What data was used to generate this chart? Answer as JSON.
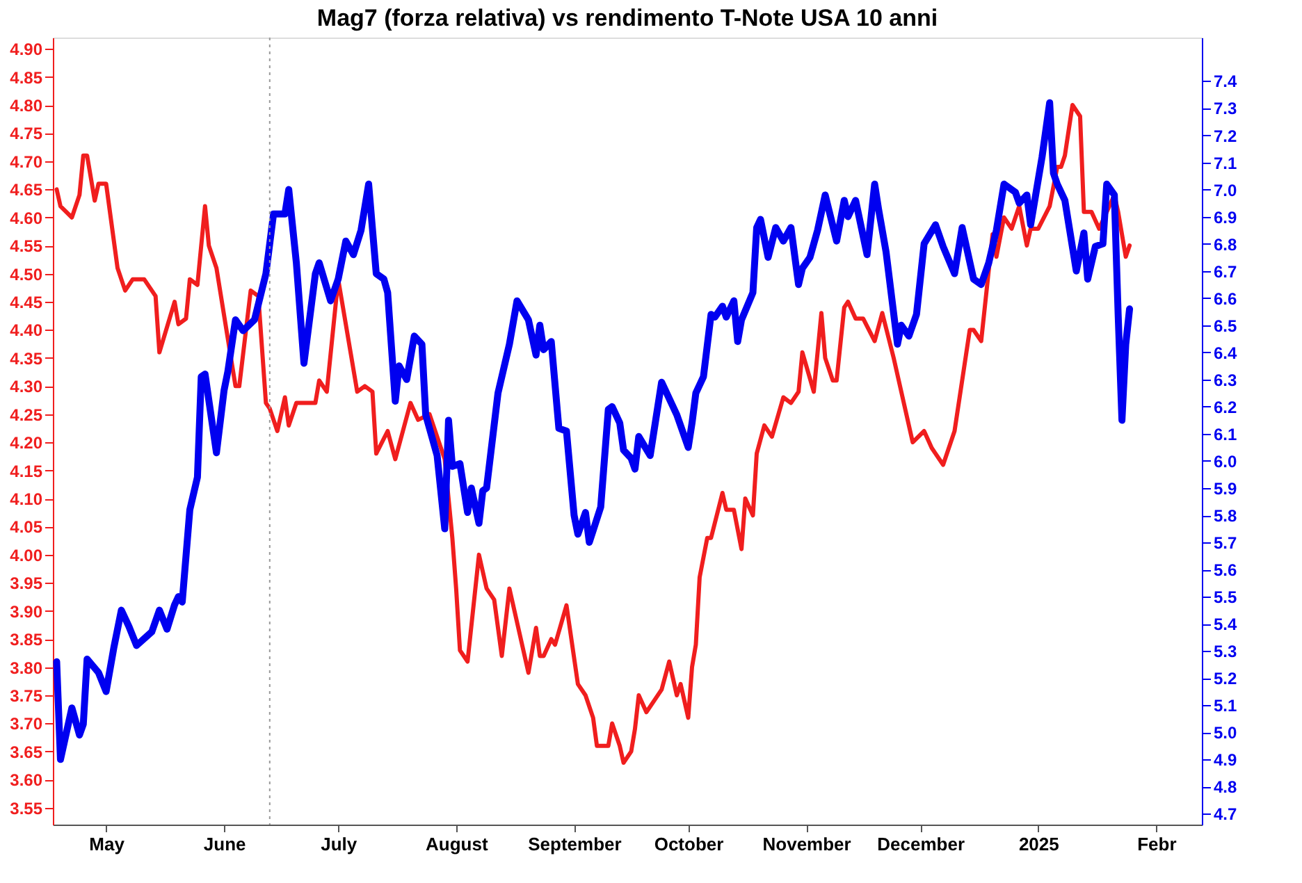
{
  "chart_data": {
    "type": "line",
    "title": "Mag7 (forza relativa) vs rendimento T-Note USA 10 anni",
    "xlim": [
      "2024-04-17",
      "2025-02-13"
    ],
    "xticks": [
      {
        "value": "2024-05-01",
        "label": "May"
      },
      {
        "value": "2024-06-01",
        "label": "June"
      },
      {
        "value": "2024-07-01",
        "label": "July"
      },
      {
        "value": "2024-08-01",
        "label": "August"
      },
      {
        "value": "2024-09-01",
        "label": "September"
      },
      {
        "value": "2024-10-01",
        "label": "October"
      },
      {
        "value": "2024-11-01",
        "label": "November"
      },
      {
        "value": "2024-12-01",
        "label": "December"
      },
      {
        "value": "2025-01-01",
        "label": "2025"
      },
      {
        "value": "2025-02-01",
        "label": "Febr"
      }
    ],
    "ylim": [
      3.52,
      4.92
    ],
    "yticks": [
      {
        "value": 3.55,
        "label": "3.55"
      },
      {
        "value": 3.6,
        "label": "3.60"
      },
      {
        "value": 3.65,
        "label": "3.65"
      },
      {
        "value": 3.7,
        "label": "3.70"
      },
      {
        "value": 3.75,
        "label": "3.75"
      },
      {
        "value": 3.8,
        "label": "3.80"
      },
      {
        "value": 3.85,
        "label": "3.85"
      },
      {
        "value": 3.9,
        "label": "3.90"
      },
      {
        "value": 3.95,
        "label": "3.95"
      },
      {
        "value": 4.0,
        "label": "4.00"
      },
      {
        "value": 4.05,
        "label": "4.05"
      },
      {
        "value": 4.1,
        "label": "4.10"
      },
      {
        "value": 4.15,
        "label": "4.15"
      },
      {
        "value": 4.2,
        "label": "4.20"
      },
      {
        "value": 4.25,
        "label": "4.25"
      },
      {
        "value": 4.3,
        "label": "4.30"
      },
      {
        "value": 4.35,
        "label": "4.35"
      },
      {
        "value": 4.4,
        "label": "4.40"
      },
      {
        "value": 4.45,
        "label": "4.45"
      },
      {
        "value": 4.5,
        "label": "4.50"
      },
      {
        "value": 4.55,
        "label": "4.55"
      },
      {
        "value": 4.6,
        "label": "4.60"
      },
      {
        "value": 4.65,
        "label": "4.65"
      },
      {
        "value": 4.7,
        "label": "4.70"
      },
      {
        "value": 4.75,
        "label": "4.75"
      },
      {
        "value": 4.8,
        "label": "4.80"
      },
      {
        "value": 4.85,
        "label": "4.85"
      },
      {
        "value": 4.9,
        "label": "4.90"
      }
    ],
    "y2lim": [
      4.66,
      7.56
    ],
    "y2ticks": [
      {
        "value": 4.7,
        "label": "4.7"
      },
      {
        "value": 4.8,
        "label": "4.8"
      },
      {
        "value": 4.9,
        "label": "4.9"
      },
      {
        "value": 5.0,
        "label": "5.0"
      },
      {
        "value": 5.1,
        "label": "5.1"
      },
      {
        "value": 5.2,
        "label": "5.2"
      },
      {
        "value": 5.3,
        "label": "5.3"
      },
      {
        "value": 5.4,
        "label": "5.4"
      },
      {
        "value": 5.5,
        "label": "5.5"
      },
      {
        "value": 5.6,
        "label": "5.6"
      },
      {
        "value": 5.7,
        "label": "5.7"
      },
      {
        "value": 5.8,
        "label": "5.8"
      },
      {
        "value": 5.9,
        "label": "5.9"
      },
      {
        "value": 6.0,
        "label": "6.0"
      },
      {
        "value": 6.1,
        "label": "6.1"
      },
      {
        "value": 6.2,
        "label": "6.2"
      },
      {
        "value": 6.3,
        "label": "6.3"
      },
      {
        "value": 6.4,
        "label": "6.4"
      },
      {
        "value": 6.5,
        "label": "6.5"
      },
      {
        "value": 6.6,
        "label": "6.6"
      },
      {
        "value": 6.7,
        "label": "6.7"
      },
      {
        "value": 6.8,
        "label": "6.8"
      },
      {
        "value": 6.9,
        "label": "6.9"
      },
      {
        "value": 7.0,
        "label": "7.0"
      },
      {
        "value": 7.1,
        "label": "7.1"
      },
      {
        "value": 7.2,
        "label": "7.2"
      },
      {
        "value": 7.3,
        "label": "7.3"
      },
      {
        "value": 7.4,
        "label": "7.4"
      }
    ],
    "grid": false,
    "marker": "none",
    "line_style": "solid",
    "ref_lines": [
      {
        "axis": "x",
        "value": "2024-06-13",
        "color": "#999999",
        "line_style": "dotted"
      }
    ],
    "series": [
      {
        "color": "#f01e1e",
        "x": [
          "2024-04-18",
          "2024-04-19",
          "2024-04-22",
          "2024-04-24",
          "2024-04-25",
          "2024-04-26",
          "2024-04-28",
          "2024-04-29",
          "2024-05-01",
          "2024-05-04",
          "2024-05-06",
          "2024-05-08",
          "2024-05-11",
          "2024-05-14",
          "2024-05-15",
          "2024-05-19",
          "2024-05-20",
          "2024-05-22",
          "2024-05-23",
          "2024-05-25",
          "2024-05-27",
          "2024-05-28",
          "2024-05-30",
          "2024-06-04",
          "2024-06-05",
          "2024-06-08",
          "2024-06-10",
          "2024-06-12",
          "2024-06-13",
          "2024-06-15",
          "2024-06-17",
          "2024-06-18",
          "2024-06-20",
          "2024-06-25",
          "2024-06-26",
          "2024-06-28",
          "2024-07-01",
          "2024-07-02",
          "2024-07-06",
          "2024-07-08",
          "2024-07-10",
          "2024-07-11",
          "2024-07-14",
          "2024-07-16",
          "2024-07-20",
          "2024-07-22",
          "2024-07-25",
          "2024-07-29",
          "2024-07-31",
          "2024-08-01",
          "2024-08-02",
          "2024-08-04",
          "2024-08-07",
          "2024-08-09",
          "2024-08-11",
          "2024-08-13",
          "2024-08-15",
          "2024-08-20",
          "2024-08-22",
          "2024-08-23",
          "2024-08-24",
          "2024-08-26",
          "2024-08-27",
          "2024-08-30",
          "2024-09-02",
          "2024-09-04",
          "2024-09-06",
          "2024-09-07",
          "2024-09-10",
          "2024-09-11",
          "2024-09-13",
          "2024-09-14",
          "2024-09-16",
          "2024-09-17",
          "2024-09-18",
          "2024-09-20",
          "2024-09-22",
          "2024-09-24",
          "2024-09-26",
          "2024-09-28",
          "2024-09-29",
          "2024-10-01",
          "2024-10-02",
          "2024-10-03",
          "2024-10-04",
          "2024-10-06",
          "2024-10-07",
          "2024-10-10",
          "2024-10-11",
          "2024-10-13",
          "2024-10-15",
          "2024-10-16",
          "2024-10-18",
          "2024-10-19",
          "2024-10-21",
          "2024-10-23",
          "2024-10-26",
          "2024-10-28",
          "2024-10-30",
          "2024-10-31",
          "2024-11-03",
          "2024-11-05",
          "2024-11-06",
          "2024-11-08",
          "2024-11-09",
          "2024-11-11",
          "2024-11-12",
          "2024-11-14",
          "2024-11-16",
          "2024-11-19",
          "2024-11-21",
          "2024-11-24",
          "2024-11-29",
          "2024-12-02",
          "2024-12-04",
          "2024-12-05",
          "2024-12-07",
          "2024-12-10",
          "2024-12-14",
          "2024-12-15",
          "2024-12-17",
          "2024-12-20",
          "2024-12-21",
          "2024-12-23",
          "2024-12-25",
          "2024-12-27",
          "2024-12-29",
          "2024-12-30",
          "2025-01-01",
          "2025-01-04",
          "2025-01-06",
          "2025-01-07",
          "2025-01-08",
          "2025-01-10",
          "2025-01-12",
          "2025-01-13",
          "2025-01-15",
          "2025-01-17",
          "2025-01-19",
          "2025-01-21",
          "2025-01-22",
          "2025-01-24",
          "2025-01-25"
        ],
        "values": [
          4.65,
          4.62,
          4.6,
          4.64,
          4.71,
          4.71,
          4.63,
          4.66,
          4.66,
          4.51,
          4.47,
          4.49,
          4.49,
          4.46,
          4.36,
          4.45,
          4.41,
          4.42,
          4.49,
          4.48,
          4.62,
          4.55,
          4.51,
          4.3,
          4.3,
          4.47,
          4.46,
          4.27,
          4.26,
          4.22,
          4.28,
          4.23,
          4.27,
          4.27,
          4.31,
          4.29,
          4.49,
          4.45,
          4.29,
          4.3,
          4.29,
          4.18,
          4.22,
          4.17,
          4.27,
          4.24,
          4.25,
          4.17,
          4.03,
          3.94,
          3.83,
          3.81,
          4.0,
          3.94,
          3.92,
          3.82,
          3.94,
          3.79,
          3.87,
          3.82,
          3.82,
          3.85,
          3.84,
          3.91,
          3.77,
          3.75,
          3.71,
          3.66,
          3.66,
          3.7,
          3.66,
          3.63,
          3.65,
          3.69,
          3.75,
          3.72,
          3.74,
          3.76,
          3.81,
          3.75,
          3.77,
          3.71,
          3.8,
          3.84,
          3.96,
          4.03,
          4.03,
          4.11,
          4.08,
          4.08,
          4.01,
          4.1,
          4.07,
          4.18,
          4.23,
          4.21,
          4.28,
          4.27,
          4.29,
          4.36,
          4.29,
          4.43,
          4.35,
          4.31,
          4.31,
          4.44,
          4.45,
          4.42,
          4.42,
          4.38,
          4.43,
          4.35,
          4.2,
          4.22,
          4.19,
          4.18,
          4.16,
          4.22,
          4.4,
          4.4,
          4.38,
          4.57,
          4.53,
          4.6,
          4.58,
          4.62,
          4.55,
          4.58,
          4.58,
          4.62,
          4.69,
          4.69,
          4.71,
          4.8,
          4.78,
          4.61,
          4.61,
          4.58,
          4.61,
          4.64,
          4.61,
          4.53,
          4.55
        ]
      },
      {
        "color": "#0000f0",
        "axis": "y2",
        "x": [
          "2024-04-18",
          "2024-04-19",
          "2024-04-22",
          "2024-04-24",
          "2024-04-25",
          "2024-04-26",
          "2024-04-29",
          "2024-05-01",
          "2024-05-03",
          "2024-05-05",
          "2024-05-07",
          "2024-05-09",
          "2024-05-13",
          "2024-05-15",
          "2024-05-17",
          "2024-05-19",
          "2024-05-20",
          "2024-05-21",
          "2024-05-23",
          "2024-05-25",
          "2024-05-26",
          "2024-05-27",
          "2024-05-30",
          "2024-06-01",
          "2024-06-02",
          "2024-06-04",
          "2024-06-06",
          "2024-06-09",
          "2024-06-12",
          "2024-06-14",
          "2024-06-17",
          "2024-06-18",
          "2024-06-20",
          "2024-06-22",
          "2024-06-25",
          "2024-06-26",
          "2024-06-29",
          "2024-07-01",
          "2024-07-03",
          "2024-07-05",
          "2024-07-07",
          "2024-07-09",
          "2024-07-11",
          "2024-07-13",
          "2024-07-14",
          "2024-07-16",
          "2024-07-17",
          "2024-07-19",
          "2024-07-21",
          "2024-07-23",
          "2024-07-24",
          "2024-07-27",
          "2024-07-29",
          "2024-07-30",
          "2024-07-31",
          "2024-08-02",
          "2024-08-04",
          "2024-08-05",
          "2024-08-07",
          "2024-08-08",
          "2024-08-09",
          "2024-08-12",
          "2024-08-15",
          "2024-08-17",
          "2024-08-20",
          "2024-08-22",
          "2024-08-23",
          "2024-08-24",
          "2024-08-26",
          "2024-08-28",
          "2024-08-30",
          "2024-09-01",
          "2024-09-02",
          "2024-09-04",
          "2024-09-05",
          "2024-09-08",
          "2024-09-10",
          "2024-09-11",
          "2024-09-13",
          "2024-09-14",
          "2024-09-16",
          "2024-09-17",
          "2024-09-18",
          "2024-09-21",
          "2024-09-24",
          "2024-09-26",
          "2024-09-28",
          "2024-10-01",
          "2024-10-02",
          "2024-10-03",
          "2024-10-05",
          "2024-10-07",
          "2024-10-08",
          "2024-10-10",
          "2024-10-11",
          "2024-10-13",
          "2024-10-14",
          "2024-10-15",
          "2024-10-18",
          "2024-10-19",
          "2024-10-20",
          "2024-10-22",
          "2024-10-24",
          "2024-10-26",
          "2024-10-28",
          "2024-10-30",
          "2024-10-31",
          "2024-11-02",
          "2024-11-04",
          "2024-11-06",
          "2024-11-09",
          "2024-11-11",
          "2024-11-12",
          "2024-11-14",
          "2024-11-17",
          "2024-11-19",
          "2024-11-20",
          "2024-11-22",
          "2024-11-25",
          "2024-11-26",
          "2024-11-28",
          "2024-11-30",
          "2024-12-02",
          "2024-12-05",
          "2024-12-07",
          "2024-12-10",
          "2024-12-12",
          "2024-12-15",
          "2024-12-17",
          "2024-12-19",
          "2024-12-21",
          "2024-12-23",
          "2024-12-26",
          "2024-12-27",
          "2024-12-29",
          "2024-12-30",
          "2025-01-02",
          "2025-01-04",
          "2025-01-05",
          "2025-01-06",
          "2025-01-08",
          "2025-01-11",
          "2025-01-13",
          "2025-01-14",
          "2025-01-16",
          "2025-01-18",
          "2025-01-19",
          "2025-01-21",
          "2025-01-22",
          "2025-01-23",
          "2025-01-24",
          "2025-01-25"
        ],
        "values": [
          5.26,
          4.9,
          5.09,
          4.99,
          5.03,
          5.27,
          5.22,
          5.15,
          5.31,
          5.45,
          5.39,
          5.32,
          5.37,
          5.45,
          5.38,
          5.47,
          5.5,
          5.48,
          5.82,
          5.94,
          6.31,
          6.32,
          6.03,
          6.26,
          6.33,
          6.52,
          6.48,
          6.52,
          6.69,
          6.91,
          6.91,
          7.0,
          6.73,
          6.36,
          6.69,
          6.73,
          6.59,
          6.67,
          6.81,
          6.76,
          6.85,
          7.02,
          6.69,
          6.67,
          6.62,
          6.22,
          6.35,
          6.3,
          6.46,
          6.43,
          6.17,
          6.02,
          5.75,
          6.15,
          5.98,
          5.99,
          5.81,
          5.9,
          5.77,
          5.89,
          5.9,
          6.25,
          6.43,
          6.59,
          6.52,
          6.39,
          6.5,
          6.41,
          6.44,
          6.12,
          6.11,
          5.8,
          5.73,
          5.81,
          5.7,
          5.83,
          6.19,
          6.2,
          6.14,
          6.04,
          6.01,
          5.97,
          6.09,
          6.02,
          6.29,
          6.23,
          6.17,
          6.05,
          6.14,
          6.25,
          6.31,
          6.54,
          6.53,
          6.57,
          6.53,
          6.59,
          6.44,
          6.52,
          6.62,
          6.86,
          6.89,
          6.75,
          6.86,
          6.81,
          6.86,
          6.65,
          6.71,
          6.75,
          6.85,
          6.98,
          6.81,
          6.96,
          6.9,
          6.96,
          6.76,
          7.02,
          6.93,
          6.77,
          6.43,
          6.5,
          6.46,
          6.54,
          6.8,
          6.87,
          6.79,
          6.69,
          6.86,
          6.67,
          6.65,
          6.73,
          6.85,
          7.02,
          6.99,
          6.95,
          6.98,
          6.87,
          7.12,
          7.32,
          7.06,
          7.02,
          6.96,
          6.7,
          6.84,
          6.67,
          6.79,
          6.8,
          7.02,
          6.98,
          6.54,
          6.15,
          6.43,
          6.56
        ]
      }
    ]
  }
}
